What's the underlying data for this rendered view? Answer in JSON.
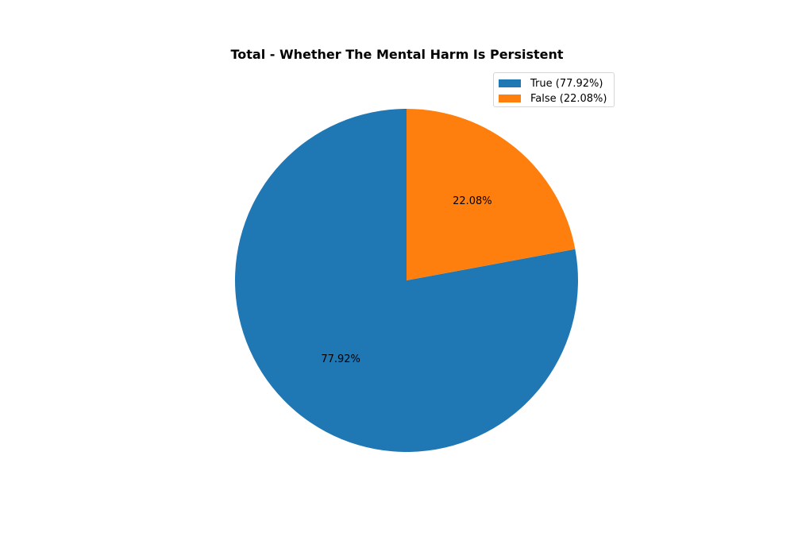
{
  "chart_data": {
    "type": "pie",
    "title": "Total - Whether The Mental Harm Is Persistent",
    "slices": [
      {
        "label": "True",
        "value": 77.92,
        "pct_label": "77.92%",
        "legend": "True (77.92%)",
        "color": "#1f77b4"
      },
      {
        "label": "False",
        "value": 22.08,
        "pct_label": "22.08%",
        "legend": "False (22.08%)",
        "color": "#ff7f0e"
      }
    ],
    "start_angle": 90,
    "direction": "counterclockwise",
    "legend_position": "top-right"
  }
}
